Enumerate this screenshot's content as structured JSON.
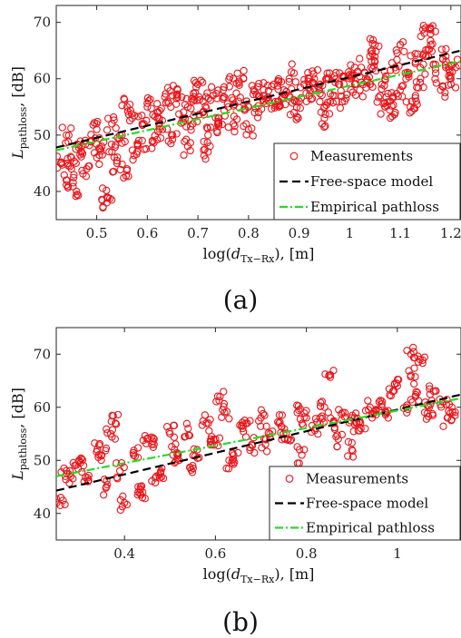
{
  "chart_data": [
    {
      "type": "scatter",
      "caption": "(a)",
      "xlabel_prefix": "log(",
      "xlabel_var": "d",
      "xlabel_sub": "Tx−Rx",
      "xlabel_suffix": "), [m]",
      "ylabel_var": "L",
      "ylabel_sub": "pathloss",
      "ylabel_suffix": ", [dB]",
      "xlim": [
        0.42,
        1.22
      ],
      "ylim": [
        35,
        73
      ],
      "xticks": [
        0.5,
        0.6,
        0.7,
        0.8,
        0.9,
        1,
        1.1,
        1.2
      ],
      "xtick_labels": [
        "0.5",
        "0.6",
        "0.7",
        "0.8",
        "0.9",
        "1",
        "1.1",
        "1.2"
      ],
      "yticks": [
        40,
        50,
        60,
        70
      ],
      "ytick_labels": [
        "40",
        "50",
        "60",
        "70"
      ],
      "legend_position": "bottom-right",
      "series": [
        {
          "name": "Measurements",
          "kind": "scatter",
          "color": "#e8161b",
          "marker": "open-circle",
          "x": [
            0.43,
            0.44,
            0.45,
            0.46,
            0.47,
            0.48,
            0.49,
            0.5,
            0.51,
            0.52,
            0.53,
            0.54,
            0.55,
            0.56,
            0.57,
            0.58,
            0.59,
            0.6,
            0.61,
            0.62,
            0.63,
            0.64,
            0.65,
            0.66,
            0.67,
            0.68,
            0.69,
            0.7,
            0.71,
            0.72,
            0.73,
            0.74,
            0.75,
            0.76,
            0.77,
            0.78,
            0.79,
            0.8,
            0.81,
            0.82,
            0.83,
            0.84,
            0.85,
            0.86,
            0.87,
            0.88,
            0.89,
            0.9,
            0.91,
            0.92,
            0.93,
            0.94,
            0.95,
            0.96,
            0.97,
            0.98,
            0.99,
            1.0,
            1.01,
            1.02,
            1.03,
            1.04,
            1.05,
            1.06,
            1.07,
            1.08,
            1.09,
            1.1,
            1.11,
            1.12,
            1.13,
            1.14,
            1.15,
            1.16,
            1.17,
            1.18,
            1.19,
            1.2,
            1.21,
            0.44,
            0.47,
            0.5,
            0.53,
            0.56,
            0.59,
            0.62,
            0.65,
            0.68,
            0.71,
            0.74,
            0.77,
            0.8,
            0.83,
            0.86,
            0.89,
            0.92,
            0.95,
            0.98,
            1.01,
            1.04,
            1.07,
            1.1,
            1.13,
            1.16,
            1.19,
            0.45,
            0.52,
            0.69,
            0.72,
            1.05,
            1.09,
            1.15
          ],
          "y": [
            45,
            42,
            46,
            40,
            47,
            44,
            49,
            46,
            48,
            39,
            52,
            45,
            50,
            44,
            53,
            47,
            52,
            55,
            49,
            54,
            51,
            56,
            50,
            58,
            53,
            55,
            52,
            59,
            54,
            50,
            57,
            53,
            58,
            55,
            52,
            56,
            60,
            55,
            58,
            54,
            57,
            56,
            59,
            55,
            58,
            57,
            61,
            56,
            59,
            57,
            60,
            58,
            55,
            61,
            57,
            59,
            56,
            60,
            62,
            58,
            61,
            59,
            63,
            57,
            60,
            56,
            62,
            58,
            61,
            55,
            63,
            60,
            64,
            66,
            61,
            58,
            64,
            60,
            62,
            50,
            48,
            51,
            47,
            55,
            49,
            53,
            57,
            48,
            56,
            52,
            60,
            51,
            58,
            56,
            54,
            60,
            53,
            61,
            59,
            64,
            55,
            66,
            57,
            68,
            62,
            44,
            38,
            56,
            47,
            66,
            54,
            69
          ]
        },
        {
          "name": "Free-space model",
          "kind": "line",
          "color": "#000000",
          "dash": "dashed",
          "x": [
            0.42,
            1.22
          ],
          "y": [
            47.8,
            65.0
          ]
        },
        {
          "name": "Empirical pathloss",
          "kind": "line",
          "color": "#22dd22",
          "dash": "dash-dot",
          "x": [
            0.42,
            1.22
          ],
          "y": [
            47.3,
            63.1
          ]
        }
      ]
    },
    {
      "type": "scatter",
      "caption": "(b)",
      "xlabel_prefix": "log(",
      "xlabel_var": "d",
      "xlabel_sub": "Tx−Rx",
      "xlabel_suffix": "), [m]",
      "ylabel_var": "L",
      "ylabel_sub": "pathloss",
      "ylabel_suffix": ", [dB]",
      "xlim": [
        0.25,
        1.14
      ],
      "ylim": [
        35,
        75
      ],
      "xticks": [
        0.4,
        0.6,
        0.8,
        1
      ],
      "xtick_labels": [
        "0.4",
        "0.6",
        "0.8",
        "1"
      ],
      "yticks": [
        40,
        50,
        60,
        70
      ],
      "ytick_labels": [
        "40",
        "50",
        "60",
        "70"
      ],
      "legend_position": "bottom-right",
      "series": [
        {
          "name": "Measurements",
          "kind": "scatter",
          "color": "#e8161b",
          "marker": "open-circle",
          "x": [
            0.26,
            0.28,
            0.3,
            0.32,
            0.34,
            0.36,
            0.38,
            0.4,
            0.42,
            0.44,
            0.46,
            0.48,
            0.5,
            0.52,
            0.54,
            0.56,
            0.58,
            0.6,
            0.62,
            0.64,
            0.66,
            0.68,
            0.7,
            0.72,
            0.74,
            0.76,
            0.78,
            0.8,
            0.82,
            0.84,
            0.86,
            0.88,
            0.9,
            0.92,
            0.94,
            0.96,
            0.98,
            1.0,
            1.02,
            1.04,
            1.06,
            1.08,
            1.1,
            1.12,
            0.27,
            0.31,
            0.35,
            0.39,
            0.43,
            0.47,
            0.51,
            0.55,
            0.59,
            0.63,
            0.67,
            0.71,
            0.75,
            0.79,
            0.83,
            0.87,
            0.91,
            0.95,
            0.99,
            1.03,
            1.07,
            1.11,
            0.37,
            0.45,
            0.61,
            0.85,
            1.03,
            1.05,
            0.9
          ],
          "y": [
            43,
            48,
            50,
            46,
            52,
            45,
            57,
            42,
            51,
            44,
            53,
            48,
            55,
            50,
            56,
            52,
            57,
            54,
            59,
            51,
            56,
            53,
            58,
            55,
            57,
            54,
            59,
            58,
            56,
            60,
            57,
            59,
            58,
            56,
            60,
            61,
            58,
            64,
            60,
            62,
            59,
            63,
            61,
            60,
            47,
            49,
            51,
            48,
            44,
            47,
            52,
            49,
            54,
            50,
            57,
            53,
            55,
            51,
            58,
            54,
            57,
            59,
            63,
            66,
            60,
            58,
            55,
            54,
            62,
            66,
            70,
            69,
            52
          ]
        },
        {
          "name": "Free-space model",
          "kind": "line",
          "color": "#000000",
          "dash": "dashed",
          "x": [
            0.25,
            1.14
          ],
          "y": [
            44.3,
            62.4
          ]
        },
        {
          "name": "Empirical pathloss",
          "kind": "line",
          "color": "#22dd22",
          "dash": "dash-dot",
          "x": [
            0.25,
            1.14
          ],
          "y": [
            47.0,
            61.7
          ]
        }
      ]
    }
  ]
}
